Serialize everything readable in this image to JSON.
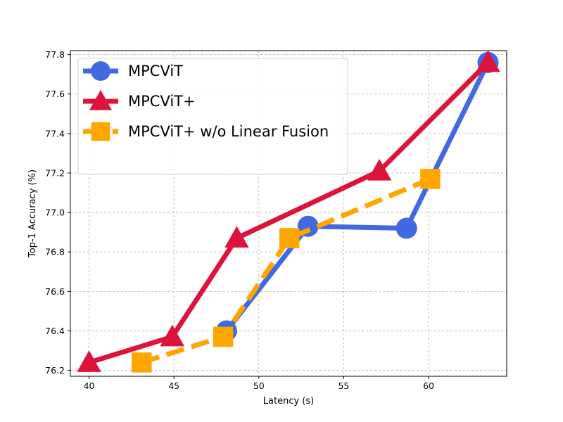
{
  "chart_data": {
    "type": "line",
    "title": "",
    "xlabel": "Latency (s)",
    "ylabel": "Top-1 Accuracy (%)",
    "xlim": [
      38.9,
      64.6
    ],
    "ylim": [
      76.17,
      77.82
    ],
    "xticks": [
      "40",
      "45",
      "50",
      "55",
      "60"
    ],
    "xtick_values": [
      40,
      45,
      50,
      55,
      60
    ],
    "yticks": [
      "76.2",
      "76.4",
      "76.6",
      "76.8",
      "77.0",
      "77.2",
      "77.4",
      "77.6",
      "77.8"
    ],
    "ytick_values": [
      76.2,
      76.4,
      76.6,
      76.8,
      77.0,
      77.2,
      77.4,
      77.6,
      77.8
    ],
    "grid": true,
    "legend_position": "top-left",
    "series": [
      {
        "name": "MPCViT",
        "color": "#4169E1",
        "marker": "circle",
        "line_style": "solid",
        "x": [
          48.1,
          52.9,
          58.7,
          63.5
        ],
        "y": [
          76.4,
          76.93,
          76.92,
          77.76
        ]
      },
      {
        "name": "MPCViT+",
        "color": "#DC143C",
        "marker": "triangle",
        "line_style": "solid",
        "x": [
          40.0,
          44.9,
          48.7,
          57.1,
          63.5
        ],
        "y": [
          76.24,
          76.37,
          76.87,
          77.21,
          77.76
        ]
      },
      {
        "name": "MPCViT+ w/o Linear Fusion",
        "color": "#FFA500",
        "marker": "square",
        "line_style": "dashed",
        "x": [
          43.1,
          47.9,
          51.8,
          60.1
        ],
        "y": [
          76.24,
          76.37,
          76.87,
          77.17
        ]
      }
    ]
  }
}
